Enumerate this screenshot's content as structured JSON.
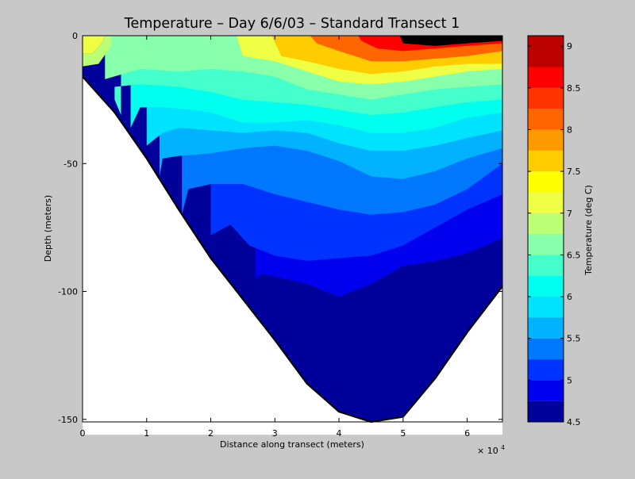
{
  "chart_data": {
    "type": "heatmap",
    "subtype": "filled-contour depth section",
    "title": "Temperature – Day 6/6/03 – Standard Transect 1",
    "xlabel": "Distance along transect (meters)",
    "ylabel": "Depth (meters)",
    "x_multiplier_label": "× 10",
    "x_multiplier_exponent": "4",
    "xlim": [
      0,
      65500
    ],
    "ylim": [
      -151,
      0
    ],
    "x_ticks": [
      0,
      10000,
      20000,
      30000,
      40000,
      50000,
      60000
    ],
    "x_tick_labels": [
      "0",
      "1",
      "2",
      "3",
      "4",
      "5",
      "6"
    ],
    "y_ticks": [
      0,
      -50,
      -100,
      -150
    ],
    "y_tick_labels": [
      "0",
      "-50",
      "-100",
      "-150"
    ],
    "colorbar": {
      "label": "Temperature (deg C)",
      "range": [
        4.5,
        9.125
      ],
      "ticks": [
        4.5,
        5,
        5.5,
        6,
        6.5,
        7,
        7.5,
        8,
        8.5,
        9
      ],
      "tick_labels": [
        "4.5",
        "5",
        "5.5",
        "6",
        "6.5",
        "7",
        "7.5",
        "8",
        "8.5",
        "9"
      ]
    },
    "contour_levels": [
      {
        "min": 4.5,
        "max": 4.75,
        "color": "#00009a"
      },
      {
        "min": 4.75,
        "max": 5.0,
        "color": "#0000ee"
      },
      {
        "min": 5.0,
        "max": 5.25,
        "color": "#0033ff"
      },
      {
        "min": 5.25,
        "max": 5.5,
        "color": "#0077ff"
      },
      {
        "min": 5.5,
        "max": 5.75,
        "color": "#00b2ff"
      },
      {
        "min": 5.75,
        "max": 6.0,
        "color": "#00e3ff"
      },
      {
        "min": 6.0,
        "max": 6.25,
        "color": "#00ffee"
      },
      {
        "min": 6.25,
        "max": 6.5,
        "color": "#44ffcc"
      },
      {
        "min": 6.5,
        "max": 6.75,
        "color": "#88ffaa"
      },
      {
        "min": 6.75,
        "max": 7.0,
        "color": "#bbff77"
      },
      {
        "min": 7.0,
        "max": 7.25,
        "color": "#eeff44"
      },
      {
        "min": 7.25,
        "max": 7.5,
        "color": "#ffff00"
      },
      {
        "min": 7.5,
        "max": 7.75,
        "color": "#ffcc00"
      },
      {
        "min": 7.75,
        "max": 8.0,
        "color": "#ff9900"
      },
      {
        "min": 8.0,
        "max": 8.25,
        "color": "#ff6600"
      },
      {
        "min": 8.25,
        "max": 8.5,
        "color": "#ff3300"
      },
      {
        "min": 8.5,
        "max": 8.75,
        "color": "#ff0000"
      },
      {
        "min": 8.75,
        "max": 9.125,
        "color": "#bb0000"
      }
    ],
    "isotherms": [
      {
        "level": 4.75,
        "points": [
          [
            27000,
            -105
          ],
          [
            27000,
            -95
          ],
          [
            28000,
            -93
          ],
          [
            35000,
            -97
          ],
          [
            40000,
            -102
          ],
          [
            45000,
            -97
          ],
          [
            50000,
            -90
          ],
          [
            55000,
            -88
          ],
          [
            60000,
            -85
          ],
          [
            65500,
            -79
          ]
        ]
      },
      {
        "level": 5.0,
        "points": [
          [
            20000,
            -88
          ],
          [
            20000,
            -78
          ],
          [
            23000,
            -74
          ],
          [
            23500,
            -75
          ],
          [
            26000,
            -82
          ],
          [
            30000,
            -86
          ],
          [
            35000,
            -88
          ],
          [
            40000,
            -87
          ],
          [
            45000,
            -86
          ],
          [
            50000,
            -82
          ],
          [
            55000,
            -75
          ],
          [
            60000,
            -68
          ],
          [
            65500,
            -62
          ]
        ]
      },
      {
        "level": 5.25,
        "points": [
          [
            15500,
            -70
          ],
          [
            16500,
            -60
          ],
          [
            20000,
            -58
          ],
          [
            25000,
            -58
          ],
          [
            30000,
            -62
          ],
          [
            35000,
            -65
          ],
          [
            40000,
            -68
          ],
          [
            45000,
            -70
          ],
          [
            50000,
            -69
          ],
          [
            55000,
            -66
          ],
          [
            60000,
            -60
          ],
          [
            65500,
            -50
          ]
        ]
      },
      {
        "level": 5.5,
        "points": [
          [
            12000,
            -55
          ],
          [
            12500,
            -48
          ],
          [
            15000,
            -47
          ],
          [
            20000,
            -46
          ],
          [
            25000,
            -44
          ],
          [
            30000,
            -43
          ],
          [
            35000,
            -45
          ],
          [
            40000,
            -49
          ],
          [
            45000,
            -55
          ],
          [
            50000,
            -56
          ],
          [
            55000,
            -53
          ],
          [
            60000,
            -48
          ],
          [
            65500,
            -44
          ]
        ]
      },
      {
        "level": 5.75,
        "points": [
          [
            10000,
            -43
          ],
          [
            12500,
            -38
          ],
          [
            15000,
            -36
          ],
          [
            20000,
            -37
          ],
          [
            25000,
            -38
          ],
          [
            30000,
            -37
          ],
          [
            35000,
            -38
          ],
          [
            40000,
            -42
          ],
          [
            45000,
            -45
          ],
          [
            50000,
            -45
          ],
          [
            55000,
            -43
          ],
          [
            60000,
            -40
          ],
          [
            65500,
            -37
          ]
        ]
      },
      {
        "level": 6.0,
        "points": [
          [
            7500,
            -36
          ],
          [
            9000,
            -28
          ],
          [
            13000,
            -28
          ],
          [
            17000,
            -29
          ],
          [
            20000,
            -30
          ],
          [
            25000,
            -34
          ],
          [
            30000,
            -34
          ],
          [
            35000,
            -33
          ],
          [
            40000,
            -35
          ],
          [
            45000,
            -38
          ],
          [
            50000,
            -38
          ],
          [
            55000,
            -36
          ],
          [
            60000,
            -32
          ],
          [
            65500,
            -30
          ]
        ]
      },
      {
        "level": 6.25,
        "points": [
          [
            6000,
            -31
          ],
          [
            5000,
            -25
          ],
          [
            5000,
            -20
          ],
          [
            9000,
            -19
          ],
          [
            15000,
            -20
          ],
          [
            20000,
            -22
          ],
          [
            25000,
            -25
          ],
          [
            30000,
            -26
          ],
          [
            35000,
            -27
          ],
          [
            40000,
            -29
          ],
          [
            45000,
            -31
          ],
          [
            50000,
            -30
          ],
          [
            55000,
            -28
          ],
          [
            60000,
            -26
          ],
          [
            65500,
            -25
          ]
        ]
      },
      {
        "level": 6.5,
        "points": [
          [
            3500,
            -19
          ],
          [
            3500,
            -17
          ],
          [
            9000,
            -13
          ],
          [
            15000,
            -14
          ],
          [
            20000,
            -13
          ],
          [
            25000,
            -14
          ],
          [
            30000,
            -16
          ],
          [
            35000,
            -21
          ],
          [
            40000,
            -23
          ],
          [
            45000,
            -25
          ],
          [
            50000,
            -23
          ],
          [
            55000,
            -21
          ],
          [
            60000,
            -20
          ],
          [
            65500,
            -19
          ]
        ]
      },
      {
        "level": 7.0,
        "points": [
          [
            24000,
            0
          ],
          [
            25000,
            -8
          ],
          [
            30000,
            -10
          ],
          [
            35000,
            -14
          ],
          [
            40000,
            -18
          ],
          [
            45000,
            -19
          ],
          [
            50000,
            -18
          ],
          [
            55000,
            -16
          ],
          [
            60000,
            -14
          ],
          [
            65500,
            -13
          ]
        ]
      },
      {
        "level": 7.5,
        "points": [
          [
            29500,
            0
          ],
          [
            31000,
            -8
          ],
          [
            35000,
            -10
          ],
          [
            40000,
            -13
          ],
          [
            45000,
            -15
          ],
          [
            50000,
            -14
          ],
          [
            55000,
            -12
          ],
          [
            60000,
            -11
          ],
          [
            65500,
            -11
          ]
        ]
      },
      {
        "level": 8.0,
        "points": [
          [
            35500,
            0
          ],
          [
            36500,
            -3
          ],
          [
            40000,
            -6
          ],
          [
            45000,
            -10
          ],
          [
            50000,
            -10
          ],
          [
            55000,
            -9
          ],
          [
            60000,
            -8
          ],
          [
            65500,
            -6
          ]
        ]
      },
      {
        "level": 8.5,
        "points": [
          [
            43000,
            0
          ],
          [
            43500,
            -2
          ],
          [
            46000,
            -5
          ],
          [
            50000,
            -6
          ],
          [
            55000,
            -5
          ],
          [
            60000,
            -4
          ],
          [
            65500,
            -3
          ]
        ]
      },
      {
        "level": 9.0,
        "points": [
          [
            49500,
            0
          ],
          [
            50000,
            -3
          ],
          [
            55000,
            -4
          ],
          [
            60000,
            -3
          ],
          [
            65500,
            -2
          ]
        ]
      }
    ],
    "bottom_profile": [
      [
        0,
        -16
      ],
      [
        5000,
        -30
      ],
      [
        10000,
        -48
      ],
      [
        15000,
        -68
      ],
      [
        20000,
        -87
      ],
      [
        25000,
        -103
      ],
      [
        30000,
        -119
      ],
      [
        35000,
        -136
      ],
      [
        40000,
        -147
      ],
      [
        45000,
        -151
      ],
      [
        50000,
        -149
      ],
      [
        55000,
        -134
      ],
      [
        60000,
        -116
      ],
      [
        65500,
        -98
      ]
    ],
    "surface_features": [
      {
        "color": "#eeff44",
        "points": [
          [
            0,
            0
          ],
          [
            3500,
            0
          ],
          [
            3000,
            -3
          ],
          [
            1500,
            -7
          ],
          [
            0,
            -7
          ]
        ]
      },
      {
        "color": "#bbff77",
        "points": [
          [
            0,
            -7
          ],
          [
            1500,
            -7
          ],
          [
            3000,
            -3
          ],
          [
            3500,
            0
          ],
          [
            4500,
            0
          ],
          [
            4500,
            -4
          ],
          [
            2500,
            -11
          ],
          [
            0,
            -12
          ]
        ]
      }
    ]
  }
}
